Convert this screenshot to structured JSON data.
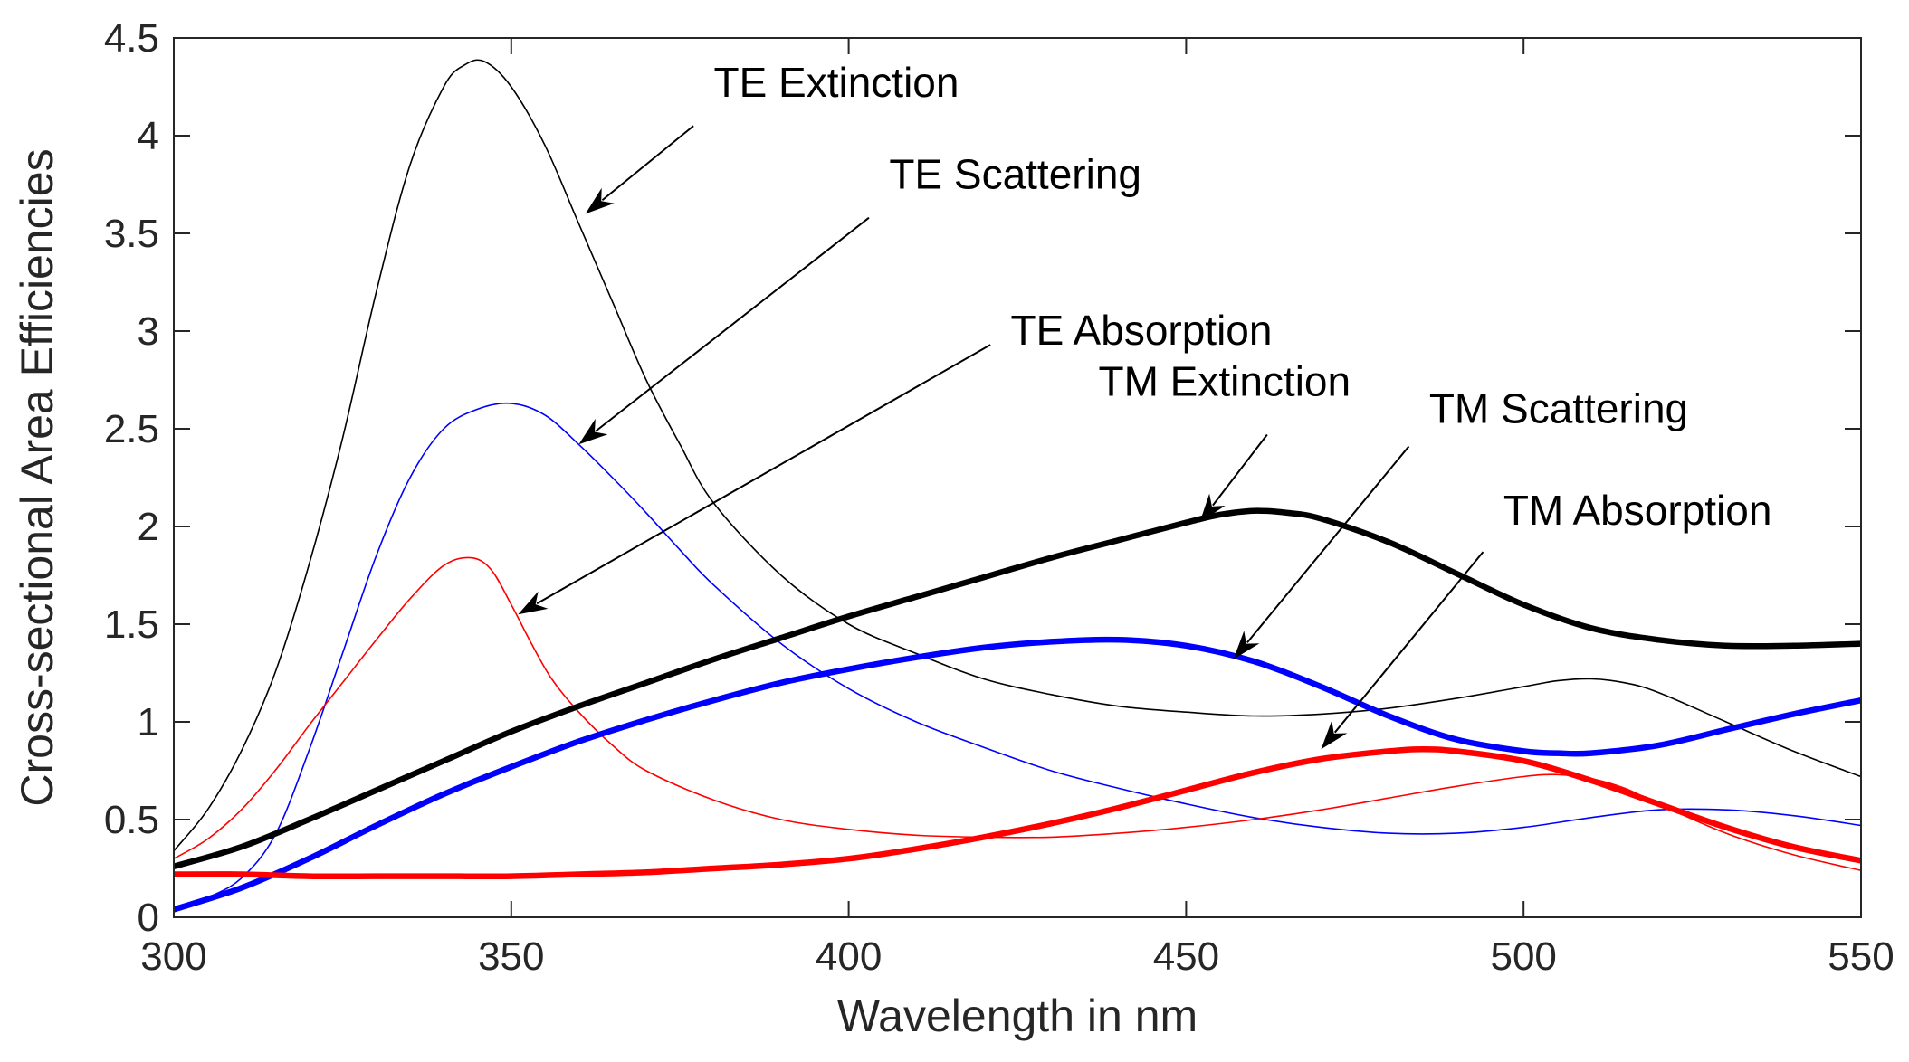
{
  "chart_data": {
    "type": "line",
    "title": "",
    "xlabel": "Wavelength in nm",
    "ylabel": "Cross-sectional Area Efficiencies",
    "xlim": [
      300,
      550
    ],
    "ylim": [
      0,
      4.5
    ],
    "xticks": [
      300,
      350,
      400,
      450,
      500,
      550
    ],
    "yticks": [
      0,
      0.5,
      1,
      1.5,
      2,
      2.5,
      3,
      3.5,
      4,
      4.5
    ],
    "xtick_labels": [
      "300",
      "350",
      "400",
      "450",
      "500",
      "550"
    ],
    "ytick_labels": [
      "0",
      "0.5",
      "1",
      "1.5",
      "2",
      "2.5",
      "3",
      "3.5",
      "4",
      "4.5"
    ],
    "grid": false,
    "series": [
      {
        "name": "TE Extinction",
        "color": "#000000",
        "weight": "thin",
        "points": [
          [
            300,
            0.34
          ],
          [
            305,
            0.55
          ],
          [
            310,
            0.85
          ],
          [
            315,
            1.25
          ],
          [
            320,
            1.8
          ],
          [
            325,
            2.45
          ],
          [
            330,
            3.2
          ],
          [
            335,
            3.85
          ],
          [
            340,
            4.25
          ],
          [
            343,
            4.36
          ],
          [
            346,
            4.38
          ],
          [
            350,
            4.25
          ],
          [
            355,
            3.95
          ],
          [
            360,
            3.55
          ],
          [
            365,
            3.15
          ],
          [
            370,
            2.75
          ],
          [
            375,
            2.42
          ],
          [
            380,
            2.12
          ],
          [
            390,
            1.75
          ],
          [
            400,
            1.5
          ],
          [
            410,
            1.35
          ],
          [
            420,
            1.22
          ],
          [
            430,
            1.14
          ],
          [
            440,
            1.08
          ],
          [
            450,
            1.05
          ],
          [
            460,
            1.03
          ],
          [
            470,
            1.04
          ],
          [
            480,
            1.07
          ],
          [
            490,
            1.12
          ],
          [
            500,
            1.18
          ],
          [
            505,
            1.21
          ],
          [
            510,
            1.22
          ],
          [
            515,
            1.2
          ],
          [
            520,
            1.15
          ],
          [
            530,
            1.0
          ],
          [
            540,
            0.85
          ],
          [
            550,
            0.72
          ]
        ]
      },
      {
        "name": "TE Scattering",
        "color": "#0000ff",
        "weight": "thin",
        "points": [
          [
            300,
            0.04
          ],
          [
            305,
            0.1
          ],
          [
            310,
            0.2
          ],
          [
            315,
            0.42
          ],
          [
            320,
            0.85
          ],
          [
            325,
            1.35
          ],
          [
            330,
            1.85
          ],
          [
            335,
            2.25
          ],
          [
            340,
            2.5
          ],
          [
            345,
            2.6
          ],
          [
            350,
            2.63
          ],
          [
            355,
            2.57
          ],
          [
            360,
            2.42
          ],
          [
            365,
            2.25
          ],
          [
            370,
            2.07
          ],
          [
            375,
            1.88
          ],
          [
            380,
            1.7
          ],
          [
            390,
            1.4
          ],
          [
            400,
            1.17
          ],
          [
            410,
            1.0
          ],
          [
            420,
            0.87
          ],
          [
            430,
            0.75
          ],
          [
            440,
            0.66
          ],
          [
            450,
            0.58
          ],
          [
            460,
            0.51
          ],
          [
            470,
            0.46
          ],
          [
            480,
            0.43
          ],
          [
            490,
            0.43
          ],
          [
            500,
            0.46
          ],
          [
            510,
            0.51
          ],
          [
            520,
            0.55
          ],
          [
            530,
            0.55
          ],
          [
            540,
            0.52
          ],
          [
            550,
            0.47
          ]
        ]
      },
      {
        "name": "TE Absorption",
        "color": "#ff0000",
        "weight": "thin",
        "points": [
          [
            300,
            0.3
          ],
          [
            305,
            0.4
          ],
          [
            310,
            0.55
          ],
          [
            315,
            0.75
          ],
          [
            320,
            0.98
          ],
          [
            325,
            1.2
          ],
          [
            330,
            1.42
          ],
          [
            335,
            1.63
          ],
          [
            340,
            1.8
          ],
          [
            344,
            1.84
          ],
          [
            347,
            1.78
          ],
          [
            350,
            1.6
          ],
          [
            353,
            1.4
          ],
          [
            356,
            1.22
          ],
          [
            360,
            1.05
          ],
          [
            365,
            0.88
          ],
          [
            370,
            0.75
          ],
          [
            380,
            0.6
          ],
          [
            390,
            0.5
          ],
          [
            400,
            0.45
          ],
          [
            410,
            0.42
          ],
          [
            420,
            0.41
          ],
          [
            430,
            0.41
          ],
          [
            440,
            0.43
          ],
          [
            450,
            0.46
          ],
          [
            460,
            0.5
          ],
          [
            470,
            0.55
          ],
          [
            480,
            0.61
          ],
          [
            490,
            0.67
          ],
          [
            500,
            0.72
          ],
          [
            505,
            0.73
          ],
          [
            510,
            0.71
          ],
          [
            515,
            0.66
          ],
          [
            520,
            0.58
          ],
          [
            530,
            0.43
          ],
          [
            540,
            0.32
          ],
          [
            550,
            0.24
          ]
        ]
      },
      {
        "name": "TM Extinction",
        "color": "#000000",
        "weight": "thick",
        "points": [
          [
            300,
            0.26
          ],
          [
            310,
            0.36
          ],
          [
            320,
            0.5
          ],
          [
            330,
            0.65
          ],
          [
            340,
            0.8
          ],
          [
            350,
            0.95
          ],
          [
            360,
            1.08
          ],
          [
            370,
            1.2
          ],
          [
            380,
            1.32
          ],
          [
            390,
            1.43
          ],
          [
            400,
            1.54
          ],
          [
            410,
            1.64
          ],
          [
            420,
            1.74
          ],
          [
            430,
            1.84
          ],
          [
            440,
            1.93
          ],
          [
            450,
            2.02
          ],
          [
            455,
            2.06
          ],
          [
            460,
            2.08
          ],
          [
            465,
            2.07
          ],
          [
            470,
            2.04
          ],
          [
            480,
            1.92
          ],
          [
            490,
            1.76
          ],
          [
            500,
            1.6
          ],
          [
            510,
            1.48
          ],
          [
            520,
            1.42
          ],
          [
            530,
            1.39
          ],
          [
            540,
            1.39
          ],
          [
            550,
            1.4
          ]
        ]
      },
      {
        "name": "TM Scattering",
        "color": "#0000ff",
        "weight": "thick",
        "points": [
          [
            300,
            0.04
          ],
          [
            310,
            0.15
          ],
          [
            320,
            0.3
          ],
          [
            330,
            0.47
          ],
          [
            340,
            0.63
          ],
          [
            350,
            0.77
          ],
          [
            360,
            0.9
          ],
          [
            370,
            1.01
          ],
          [
            380,
            1.11
          ],
          [
            390,
            1.2
          ],
          [
            400,
            1.27
          ],
          [
            410,
            1.33
          ],
          [
            420,
            1.38
          ],
          [
            430,
            1.41
          ],
          [
            440,
            1.42
          ],
          [
            450,
            1.39
          ],
          [
            460,
            1.31
          ],
          [
            470,
            1.18
          ],
          [
            480,
            1.03
          ],
          [
            490,
            0.91
          ],
          [
            500,
            0.85
          ],
          [
            505,
            0.84
          ],
          [
            510,
            0.84
          ],
          [
            520,
            0.88
          ],
          [
            530,
            0.96
          ],
          [
            540,
            1.04
          ],
          [
            550,
            1.11
          ]
        ]
      },
      {
        "name": "TM Absorption",
        "color": "#ff0000",
        "weight": "thick",
        "points": [
          [
            300,
            0.22
          ],
          [
            310,
            0.22
          ],
          [
            320,
            0.21
          ],
          [
            330,
            0.21
          ],
          [
            340,
            0.21
          ],
          [
            350,
            0.21
          ],
          [
            360,
            0.22
          ],
          [
            370,
            0.23
          ],
          [
            380,
            0.25
          ],
          [
            390,
            0.27
          ],
          [
            400,
            0.3
          ],
          [
            410,
            0.35
          ],
          [
            420,
            0.41
          ],
          [
            430,
            0.48
          ],
          [
            440,
            0.56
          ],
          [
            450,
            0.65
          ],
          [
            460,
            0.74
          ],
          [
            470,
            0.81
          ],
          [
            480,
            0.85
          ],
          [
            485,
            0.86
          ],
          [
            490,
            0.85
          ],
          [
            500,
            0.8
          ],
          [
            510,
            0.7
          ],
          [
            520,
            0.58
          ],
          [
            530,
            0.46
          ],
          [
            540,
            0.36
          ],
          [
            550,
            0.29
          ]
        ]
      }
    ],
    "annotations": [
      {
        "text": "TE Extinction",
        "text_at": [
          380,
          4.2
        ],
        "arrow_from": [
          377,
          4.05
        ],
        "arrow_to": [
          361,
          3.6
        ]
      },
      {
        "text": "TE Scattering",
        "text_at": [
          406,
          3.73
        ],
        "arrow_from": [
          403,
          3.58
        ],
        "arrow_to": [
          360,
          2.42
        ]
      },
      {
        "text": "TE Absorption",
        "text_at": [
          424,
          2.93
        ],
        "arrow_from": [
          421,
          2.93
        ],
        "arrow_to": [
          351,
          1.55
        ]
      },
      {
        "text": "TM Extinction",
        "text_at": [
          437,
          2.67
        ],
        "arrow_from": [
          462,
          2.47
        ],
        "arrow_to": [
          452,
          2.02
        ]
      },
      {
        "text": "TM Scattering",
        "text_at": [
          486,
          2.53
        ],
        "arrow_from": [
          483,
          2.41
        ],
        "arrow_to": [
          457,
          1.32
        ]
      },
      {
        "text": "TM Absorption",
        "text_at": [
          497,
          2.01
        ],
        "arrow_from": [
          494,
          1.87
        ],
        "arrow_to": [
          470,
          0.86
        ]
      }
    ]
  }
}
